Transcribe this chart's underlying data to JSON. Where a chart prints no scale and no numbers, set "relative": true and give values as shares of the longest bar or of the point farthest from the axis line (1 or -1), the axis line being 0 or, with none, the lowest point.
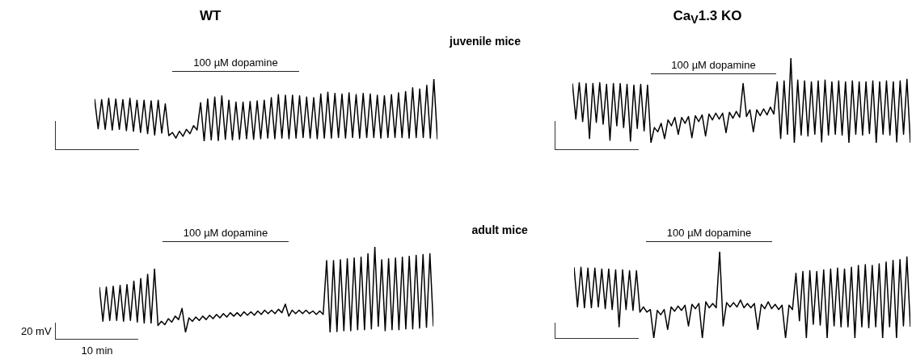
{
  "chart_data": [
    {
      "type": "line",
      "title": "WT",
      "annotations": [
        "100 µM dopamine"
      ],
      "relative": true,
      "categories": [
        null,
        null,
        null,
        null,
        null,
        null,
        null,
        null,
        null,
        null,
        null,
        null,
        null,
        null,
        null,
        null,
        null,
        null,
        null,
        null,
        null,
        null,
        null,
        null,
        null,
        null,
        null,
        null,
        null,
        null,
        null,
        null,
        null,
        null,
        null,
        null,
        null,
        null,
        null,
        null,
        null,
        null,
        null,
        null,
        null,
        null,
        null,
        null,
        null,
        null,
        null,
        null,
        null,
        null,
        null,
        null,
        null,
        null,
        null,
        null,
        null,
        null,
        null,
        null,
        null,
        null,
        null,
        null,
        null,
        null,
        null,
        null,
        null,
        null,
        null,
        null,
        null,
        null,
        null,
        null,
        null,
        null,
        null,
        null,
        null,
        null,
        null,
        null,
        null,
        null,
        null,
        null,
        null,
        null,
        null,
        null,
        null,
        null
      ],
      "series": [
        {
          "color": "#000000",
          "values": [
            0.68,
            0.2,
            0.67,
            0.19,
            0.69,
            0.18,
            0.68,
            0.19,
            0.67,
            0.17,
            0.69,
            0.16,
            0.66,
            0.14,
            0.66,
            0.12,
            0.65,
            0.1,
            0.66,
            0.13,
            0.6,
            0.09,
            0.14,
            0.05,
            0.16,
            0.08,
            0.19,
            0.12,
            0.25,
            0.18,
            0.62,
            0,
            0.68,
            0.02,
            0.71,
            0.01,
            0.73,
            0.03,
            0.66,
            0.02,
            0.63,
            0.03,
            0.63,
            0.04,
            0.64,
            0.03,
            0.65,
            0.04,
            0.66,
            0.05,
            0.7,
            0.04,
            0.75,
            0.05,
            0.74,
            0.04,
            0.74,
            0.05,
            0.73,
            0.06,
            0.71,
            0.05,
            0.7,
            0.04,
            0.76,
            0.05,
            0.79,
            0.05,
            0.77,
            0.06,
            0.76,
            0.05,
            0.78,
            0.06,
            0.75,
            0.05,
            0.77,
            0.06,
            0.76,
            0.06,
            0.74,
            0.05,
            0.73,
            0.06,
            0.75,
            0.06,
            0.78,
            0.06,
            0.8,
            0.05,
            0.86,
            0.06,
            0.84,
            0.06,
            0.9,
            0.05,
            1.0,
            0.03
          ]
        }
      ]
    },
    {
      "type": "line",
      "title": "Ca$_{V}$1.3 KO",
      "annotations": [
        "juvenile mice",
        "100 µM dopamine"
      ],
      "relative": true,
      "categories": [
        null,
        null,
        null,
        null,
        null,
        null,
        null,
        null,
        null,
        null,
        null,
        null,
        null,
        null,
        null,
        null,
        null,
        null,
        null,
        null,
        null,
        null,
        null,
        null,
        null,
        null,
        null,
        null,
        null,
        null,
        null,
        null,
        null,
        null,
        null,
        null,
        null,
        null,
        null,
        null,
        null,
        null,
        null,
        null,
        null,
        null,
        null,
        null,
        null,
        null,
        null,
        null,
        null,
        null,
        null,
        null,
        null,
        null,
        null,
        null,
        null,
        null,
        null,
        null,
        null,
        null,
        null,
        null,
        null,
        null,
        null,
        null,
        null,
        null,
        null,
        null,
        null,
        null,
        null,
        null,
        null,
        null,
        null,
        null,
        null,
        null,
        null,
        null,
        null,
        null,
        null,
        null,
        null,
        null,
        null,
        null,
        null,
        null,
        null,
        null
      ],
      "series": [
        {
          "color": "#000000",
          "values": [
            0.7,
            0.28,
            0.71,
            0.25,
            0.7,
            0.05,
            0.7,
            0.24,
            0.71,
            0.22,
            0.69,
            0.03,
            0.7,
            0.2,
            0.7,
            0.18,
            0.69,
            0.02,
            0.68,
            0.17,
            0.69,
            0.14,
            0.68,
            0.0,
            0.18,
            0.13,
            0.23,
            0.05,
            0.27,
            0.2,
            0.3,
            0.1,
            0.3,
            0.23,
            0.31,
            0.06,
            0.32,
            0.25,
            0.33,
            0.08,
            0.34,
            0.27,
            0.35,
            0.28,
            0.35,
            0.12,
            0.36,
            0.29,
            0.37,
            0.3,
            0.7,
            0.31,
            0.39,
            0.13,
            0.39,
            0.32,
            0.4,
            0.33,
            0.42,
            0.34,
            0.72,
            0.05,
            0.73,
            0.1,
            1.0,
            0.0,
            0.74,
            0.09,
            0.73,
            0.08,
            0.72,
            0.1,
            0.73,
            0.01,
            0.74,
            0.09,
            0.72,
            0.1,
            0.73,
            0.09,
            0.72,
            0.0,
            0.73,
            0.1,
            0.72,
            0.09,
            0.72,
            0.11,
            0.73,
            0.0,
            0.72,
            0.1,
            0.73,
            0.09,
            0.72,
            0.01,
            0.73,
            0.1,
            0.75,
            0.0
          ]
        }
      ]
    },
    {
      "type": "line",
      "annotations": [
        "adult mice",
        "100 µM dopamine",
        "20 mV",
        "10 min"
      ],
      "relative": true,
      "categories": [
        null,
        null,
        null,
        null,
        null,
        null,
        null,
        null,
        null,
        null,
        null,
        null,
        null,
        null,
        null,
        null,
        null,
        null,
        null,
        null,
        null,
        null,
        null,
        null,
        null,
        null,
        null,
        null,
        null,
        null,
        null,
        null,
        null,
        null,
        null,
        null,
        null,
        null,
        null,
        null,
        null,
        null,
        null,
        null,
        null,
        null,
        null,
        null,
        null,
        null,
        null,
        null,
        null,
        null,
        null,
        null,
        null,
        null,
        null,
        null,
        null,
        null,
        null,
        null,
        null,
        null,
        null,
        null,
        null,
        null,
        null,
        null,
        null,
        null,
        null,
        null,
        null,
        null,
        null,
        null,
        null,
        null,
        null,
        null,
        null,
        null,
        null,
        null,
        null,
        null,
        null,
        null,
        null,
        null,
        null,
        null,
        null,
        null
      ],
      "series": [
        {
          "color": "#000000",
          "values": [
            0.53,
            0.13,
            0.53,
            0.14,
            0.54,
            0.14,
            0.55,
            0.13,
            0.56,
            0.14,
            0.6,
            0.12,
            0.63,
            0.11,
            0.68,
            0.11,
            0.74,
            0.08,
            0.13,
            0.09,
            0.16,
            0.12,
            0.19,
            0.15,
            0.28,
            0.0,
            0.17,
            0.13,
            0.18,
            0.14,
            0.19,
            0.15,
            0.2,
            0.16,
            0.21,
            0.17,
            0.22,
            0.18,
            0.23,
            0.19,
            0.23,
            0.19,
            0.24,
            0.2,
            0.24,
            0.2,
            0.25,
            0.21,
            0.26,
            0.22,
            0.26,
            0.22,
            0.27,
            0.23,
            0.33,
            0.19,
            0.26,
            0.22,
            0.26,
            0.22,
            0.26,
            0.22,
            0.25,
            0.21,
            0.25,
            0.21,
            0.84,
            0.0,
            0.84,
            0.01,
            0.85,
            0.02,
            0.86,
            0.02,
            0.87,
            0.03,
            0.88,
            0.03,
            0.92,
            0.04,
            1.0,
            0.07,
            0.85,
            0.02,
            0.86,
            0.03,
            0.87,
            0.03,
            0.88,
            0.04,
            0.89,
            0.04,
            0.9,
            0.05,
            0.91,
            0.06,
            0.92,
            0.07
          ]
        }
      ]
    },
    {
      "type": "line",
      "annotations": [
        "100 µM dopamine"
      ],
      "relative": true,
      "categories": [
        null,
        null,
        null,
        null,
        null,
        null,
        null,
        null,
        null,
        null,
        null,
        null,
        null,
        null,
        null,
        null,
        null,
        null,
        null,
        null,
        null,
        null,
        null,
        null,
        null,
        null,
        null,
        null,
        null,
        null,
        null,
        null,
        null,
        null,
        null,
        null,
        null,
        null,
        null,
        null,
        null,
        null,
        null,
        null,
        null,
        null,
        null,
        null,
        null,
        null,
        null,
        null,
        null,
        null,
        null,
        null,
        null,
        null,
        null,
        null,
        null,
        null,
        null,
        null,
        null,
        null,
        null,
        null,
        null,
        null,
        null,
        null,
        null,
        null,
        null,
        null,
        null,
        null,
        null,
        null,
        null,
        null,
        null,
        null,
        null,
        null,
        null,
        null,
        null,
        null,
        null,
        null,
        null,
        null,
        null,
        null,
        null,
        null
      ],
      "series": [
        {
          "color": "#000000",
          "values": [
            0.82,
            0.36,
            0.82,
            0.35,
            0.81,
            0.35,
            0.81,
            0.36,
            0.8,
            0.34,
            0.8,
            0.33,
            0.79,
            0.13,
            0.79,
            0.33,
            0.78,
            0.32,
            0.78,
            0.3,
            0.36,
            0.3,
            0.33,
            0.0,
            0.32,
            0.27,
            0.33,
            0.1,
            0.36,
            0.31,
            0.37,
            0.32,
            0.38,
            0.14,
            0.39,
            0.34,
            0.4,
            0.0,
            0.42,
            0.35,
            0.4,
            0.35,
            1.0,
            0.14,
            0.41,
            0.36,
            0.41,
            0.36,
            0.44,
            0.35,
            0.4,
            0.35,
            0.4,
            0.1,
            0.39,
            0.34,
            0.42,
            0.34,
            0.39,
            0.33,
            0.38,
            0.0,
            0.38,
            0.33,
            0.75,
            0.2,
            0.77,
            0.0,
            0.78,
            0.16,
            0.77,
            0.15,
            0.79,
            0.0,
            0.8,
            0.14,
            0.81,
            0.13,
            0.8,
            0.13,
            0.82,
            0.0,
            0.84,
            0.13,
            0.85,
            0.12,
            0.84,
            0.13,
            0.86,
            0.0,
            0.88,
            0.13,
            0.9,
            0.0,
            0.91,
            0.14,
            0.94,
            0.13
          ]
        }
      ]
    }
  ]
}
